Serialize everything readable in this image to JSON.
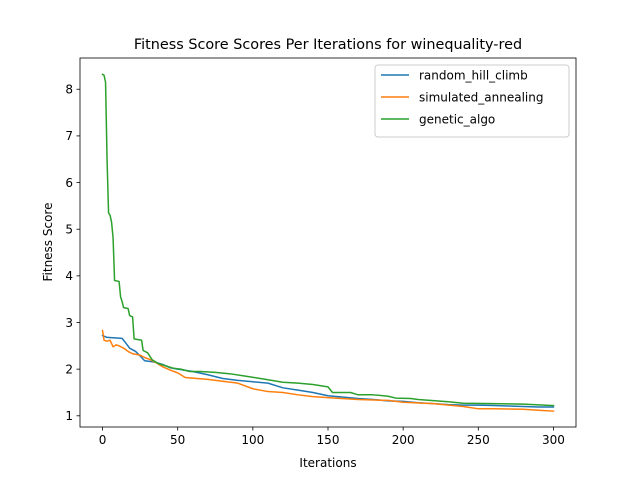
{
  "chart_data": {
    "type": "line",
    "title": "Fitness Score Scores Per Iterations for winequality-red",
    "xlabel": "Iterations",
    "ylabel": "Fitness Score",
    "xlim": [
      -15,
      315
    ],
    "ylim": [
      0.76,
      8.67
    ],
    "xticks": [
      0,
      50,
      100,
      150,
      200,
      250,
      300
    ],
    "yticks": [
      1,
      2,
      3,
      4,
      5,
      6,
      7,
      8
    ],
    "grid": false,
    "legend_position": "upper right",
    "series": [
      {
        "name": "random_hill_climb",
        "color": "#1f77b4",
        "points": [
          [
            0,
            2.72
          ],
          [
            3,
            2.68
          ],
          [
            13,
            2.66
          ],
          [
            15,
            2.58
          ],
          [
            18,
            2.45
          ],
          [
            22,
            2.38
          ],
          [
            26,
            2.25
          ],
          [
            28,
            2.18
          ],
          [
            35,
            2.15
          ],
          [
            40,
            2.1
          ],
          [
            45,
            2.03
          ],
          [
            50,
            2.0
          ],
          [
            60,
            1.95
          ],
          [
            70,
            1.88
          ],
          [
            80,
            1.8
          ],
          [
            90,
            1.76
          ],
          [
            100,
            1.73
          ],
          [
            110,
            1.7
          ],
          [
            120,
            1.6
          ],
          [
            130,
            1.55
          ],
          [
            140,
            1.5
          ],
          [
            150,
            1.43
          ],
          [
            160,
            1.4
          ],
          [
            170,
            1.37
          ],
          [
            180,
            1.35
          ],
          [
            190,
            1.32
          ],
          [
            200,
            1.31
          ],
          [
            210,
            1.28
          ],
          [
            220,
            1.26
          ],
          [
            230,
            1.24
          ],
          [
            240,
            1.23
          ],
          [
            250,
            1.23
          ],
          [
            260,
            1.22
          ],
          [
            270,
            1.21
          ],
          [
            280,
            1.2
          ],
          [
            290,
            1.19
          ],
          [
            300,
            1.19
          ]
        ]
      },
      {
        "name": "simulated_annealing",
        "color": "#ff7f0e",
        "points": [
          [
            0,
            2.83
          ],
          [
            1,
            2.62
          ],
          [
            3,
            2.6
          ],
          [
            5,
            2.62
          ],
          [
            7,
            2.48
          ],
          [
            9,
            2.52
          ],
          [
            11,
            2.5
          ],
          [
            14,
            2.45
          ],
          [
            17,
            2.38
          ],
          [
            20,
            2.33
          ],
          [
            25,
            2.3
          ],
          [
            28,
            2.25
          ],
          [
            32,
            2.2
          ],
          [
            35,
            2.15
          ],
          [
            40,
            2.05
          ],
          [
            45,
            1.98
          ],
          [
            50,
            1.92
          ],
          [
            55,
            1.82
          ],
          [
            70,
            1.78
          ],
          [
            90,
            1.7
          ],
          [
            100,
            1.58
          ],
          [
            110,
            1.52
          ],
          [
            120,
            1.5
          ],
          [
            130,
            1.45
          ],
          [
            140,
            1.41
          ],
          [
            155,
            1.38
          ],
          [
            170,
            1.35
          ],
          [
            190,
            1.33
          ],
          [
            200,
            1.29
          ],
          [
            220,
            1.26
          ],
          [
            240,
            1.2
          ],
          [
            250,
            1.15
          ],
          [
            260,
            1.15
          ],
          [
            280,
            1.14
          ],
          [
            290,
            1.12
          ],
          [
            300,
            1.1
          ]
        ]
      },
      {
        "name": "genetic_algo",
        "color": "#2ca02c",
        "points": [
          [
            0,
            8.32
          ],
          [
            1,
            8.3
          ],
          [
            2,
            8.15
          ],
          [
            3,
            6.5
          ],
          [
            4,
            5.35
          ],
          [
            5,
            5.3
          ],
          [
            6,
            5.15
          ],
          [
            7,
            4.82
          ],
          [
            8,
            3.9
          ],
          [
            11,
            3.88
          ],
          [
            12,
            3.55
          ],
          [
            13,
            3.45
          ],
          [
            14,
            3.32
          ],
          [
            17,
            3.3
          ],
          [
            18,
            3.15
          ],
          [
            20,
            3.12
          ],
          [
            21,
            2.65
          ],
          [
            26,
            2.62
          ],
          [
            27,
            2.4
          ],
          [
            30,
            2.35
          ],
          [
            33,
            2.2
          ],
          [
            37,
            2.12
          ],
          [
            42,
            2.07
          ],
          [
            47,
            2.02
          ],
          [
            52,
            2.0
          ],
          [
            58,
            1.95
          ],
          [
            65,
            1.95
          ],
          [
            75,
            1.93
          ],
          [
            85,
            1.9
          ],
          [
            95,
            1.85
          ],
          [
            105,
            1.8
          ],
          [
            120,
            1.72
          ],
          [
            130,
            1.7
          ],
          [
            140,
            1.67
          ],
          [
            150,
            1.62
          ],
          [
            153,
            1.5
          ],
          [
            165,
            1.5
          ],
          [
            170,
            1.45
          ],
          [
            180,
            1.45
          ],
          [
            190,
            1.42
          ],
          [
            195,
            1.38
          ],
          [
            205,
            1.37
          ],
          [
            210,
            1.35
          ],
          [
            230,
            1.3
          ],
          [
            240,
            1.27
          ],
          [
            260,
            1.26
          ],
          [
            280,
            1.25
          ],
          [
            300,
            1.22
          ]
        ]
      }
    ]
  }
}
